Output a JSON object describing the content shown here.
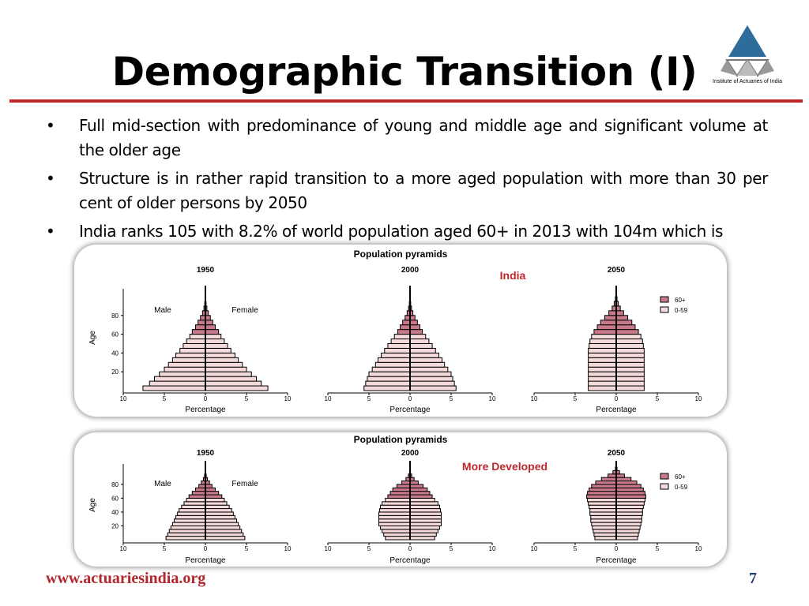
{
  "slide": {
    "title": "Demographic Transition (I)",
    "logo_caption": "Institute of Actuaries of India",
    "bullets": [
      "Full mid-section with predominance of young and middle age and significant volume at the older age",
      "Structure is in rather rapid transition to a more aged population with more than 30 per cent of older persons by 2050",
      "India ranks 105 with 8.2% of world population aged 60+ in 2013 with 104m which is"
    ],
    "bullet_glyph": "•",
    "footer_url": "www.actuariesindia.org",
    "page_number": "7"
  },
  "colors": {
    "accent": "#c0272d",
    "older": "#c8798a",
    "younger": "#f4dada",
    "logo": "#2e6d9b",
    "footer_page": "#1f3b73"
  },
  "chart_data": [
    {
      "type": "population-pyramid",
      "title": "Population pyramids",
      "region_label": "India",
      "ylabel": "Age",
      "xlabel": "Percentage",
      "male_label": "Male",
      "female_label": "Female",
      "legend": [
        "60+",
        "0-59"
      ],
      "legend_placement": "top-right",
      "age_ticks": [
        "20",
        "40",
        "60",
        "80"
      ],
      "pct_ticks": [
        "10",
        "5",
        "0",
        "5",
        "10"
      ],
      "xlim": [
        -10,
        10
      ],
      "age_groups": [
        "0-4",
        "5-9",
        "10-14",
        "15-19",
        "20-24",
        "25-29",
        "30-34",
        "35-39",
        "40-44",
        "45-49",
        "50-54",
        "55-59",
        "60-64",
        "65-69",
        "70-74",
        "75-79",
        "80-84",
        "85-89",
        "90-94",
        "95-99",
        "100+"
      ],
      "older_start_index": 12,
      "pyramids": [
        {
          "year": "1950",
          "values": [
            7.6,
            6.8,
            6.2,
            5.6,
            5.0,
            4.5,
            4.0,
            3.6,
            3.1,
            2.7,
            2.3,
            1.9,
            1.6,
            1.2,
            0.9,
            0.6,
            0.35,
            0.18,
            0.08,
            0.03,
            0.01
          ]
        },
        {
          "year": "2000",
          "values": [
            5.6,
            5.4,
            5.2,
            5.0,
            4.6,
            4.2,
            3.9,
            3.5,
            3.1,
            2.7,
            2.3,
            1.9,
            1.5,
            1.2,
            0.9,
            0.6,
            0.35,
            0.18,
            0.08,
            0.03,
            0.01
          ]
        },
        {
          "year": "2050",
          "values": [
            3.4,
            3.4,
            3.4,
            3.4,
            3.4,
            3.4,
            3.4,
            3.4,
            3.4,
            3.3,
            3.2,
            3.0,
            2.7,
            2.3,
            1.9,
            1.4,
            0.9,
            0.5,
            0.25,
            0.1,
            0.03
          ]
        }
      ]
    },
    {
      "type": "population-pyramid",
      "title": "Population pyramids",
      "region_label": "More Developed",
      "ylabel": "Age",
      "xlabel": "Percentage",
      "male_label": "Male",
      "female_label": "Female",
      "legend": [
        "60+",
        "0-59"
      ],
      "legend_placement": "top-right",
      "age_ticks": [
        "20",
        "40",
        "60",
        "80"
      ],
      "pct_ticks": [
        "10",
        "5",
        "0",
        "5",
        "10"
      ],
      "xlim": [
        -10,
        10
      ],
      "age_groups": [
        "0-4",
        "5-9",
        "10-14",
        "15-19",
        "20-24",
        "25-29",
        "30-34",
        "35-39",
        "40-44",
        "45-49",
        "50-54",
        "55-59",
        "60-64",
        "65-69",
        "70-74",
        "75-79",
        "80-84",
        "85-89",
        "90-94",
        "95-99",
        "100+"
      ],
      "older_start_index": 12,
      "pyramids": [
        {
          "year": "1950",
          "values": [
            4.8,
            4.6,
            4.4,
            4.2,
            4.0,
            3.8,
            3.6,
            3.4,
            3.2,
            2.9,
            2.6,
            2.3,
            2.0,
            1.6,
            1.2,
            0.8,
            0.5,
            0.25,
            0.1,
            0.04,
            0.01
          ]
        },
        {
          "year": "2000",
          "values": [
            3.0,
            3.2,
            3.4,
            3.6,
            3.8,
            3.8,
            3.8,
            3.8,
            3.7,
            3.6,
            3.4,
            3.0,
            2.7,
            2.4,
            2.1,
            1.6,
            1.0,
            0.5,
            0.2,
            0.06,
            0.02
          ]
        },
        {
          "year": "2050",
          "values": [
            2.6,
            2.7,
            2.8,
            2.9,
            3.0,
            3.1,
            3.1,
            3.2,
            3.2,
            3.3,
            3.4,
            3.5,
            3.6,
            3.5,
            3.3,
            3.0,
            2.5,
            1.8,
            1.0,
            0.4,
            0.1
          ]
        }
      ]
    }
  ]
}
